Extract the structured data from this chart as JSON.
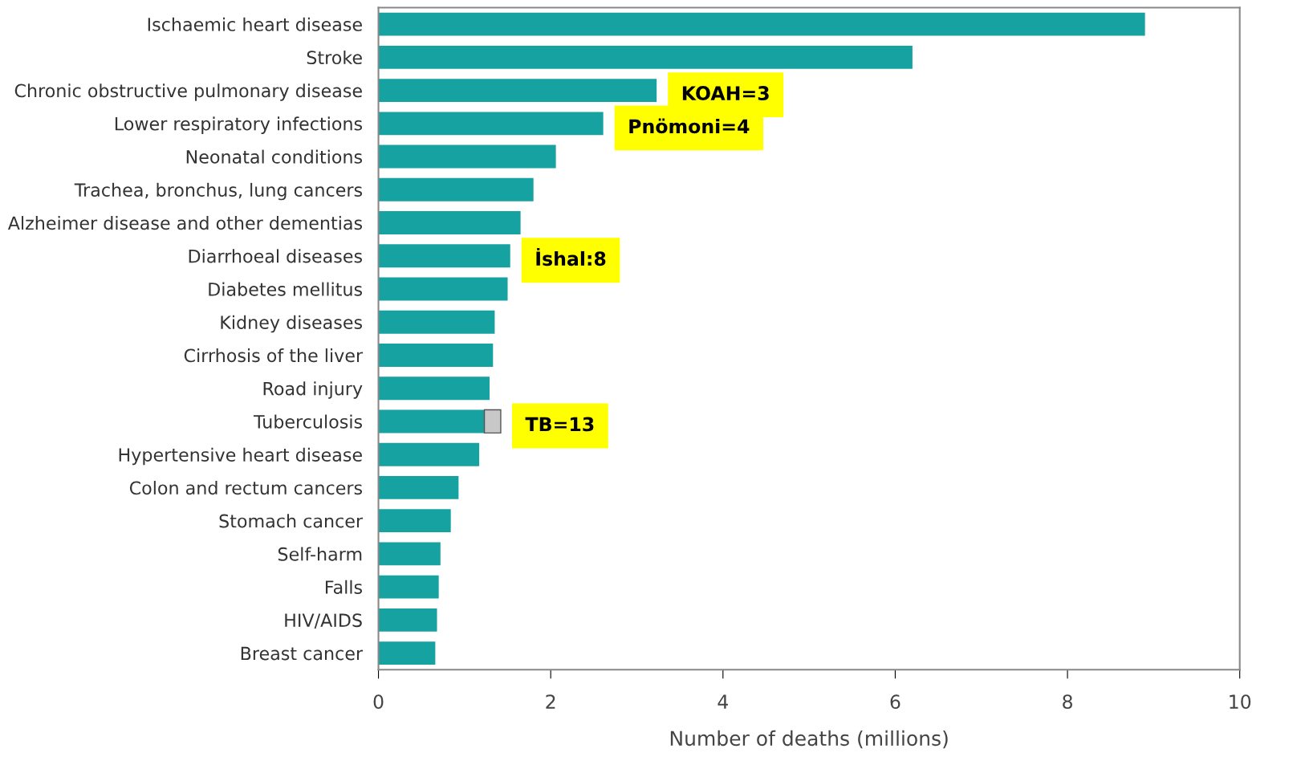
{
  "chart_data": {
    "type": "bar",
    "orientation": "horizontal",
    "stacked": true,
    "categories": [
      "Ischaemic heart disease",
      "Stroke",
      "Chronic obstructive pulmonary disease",
      "Lower respiratory infections",
      "Neonatal conditions",
      "Trachea, bronchus, lung cancers",
      "Alzheimer disease and other dementias",
      "Diarrhoeal diseases",
      "Diabetes mellitus",
      "Kidney diseases",
      "Cirrhosis of the liver",
      "Road injury",
      "Tuberculosis",
      "Hypertensive heart disease",
      "Colon and rectum cancers",
      "Stomach cancer",
      "Self-harm",
      "Falls",
      "HIV/AIDS",
      "Breast cancer"
    ],
    "series": [
      {
        "color": "#17a2a2",
        "values": [
          8.9,
          6.2,
          3.23,
          2.61,
          2.06,
          1.8,
          1.65,
          1.53,
          1.5,
          1.35,
          1.33,
          1.29,
          1.23,
          1.17,
          0.93,
          0.84,
          0.72,
          0.7,
          0.68,
          0.66
        ]
      },
      {
        "color": "#c8c8c8",
        "values": [
          null,
          null,
          null,
          null,
          null,
          null,
          null,
          null,
          null,
          null,
          null,
          null,
          0.19,
          null,
          null,
          null,
          null,
          null,
          null,
          null
        ]
      }
    ],
    "xlim": [
      0,
      10
    ],
    "xticks": [
      0,
      2,
      4,
      6,
      8,
      10
    ],
    "xlabel": "Number of deaths (millions)",
    "grid": false,
    "legend": false,
    "annotations": [
      {
        "text": "KOAH=3",
        "x": 3.23,
        "y": "Chronic obstructive pulmonary disease"
      },
      {
        "text": "Pnömoni=4",
        "x": 2.61,
        "y": "Lower respiratory infections"
      },
      {
        "text": "İshal:8",
        "x": 1.53,
        "y": "Diarrhoeal diseases"
      },
      {
        "text": "TB=13",
        "x": 1.42,
        "y": "Tuberculosis"
      }
    ]
  }
}
